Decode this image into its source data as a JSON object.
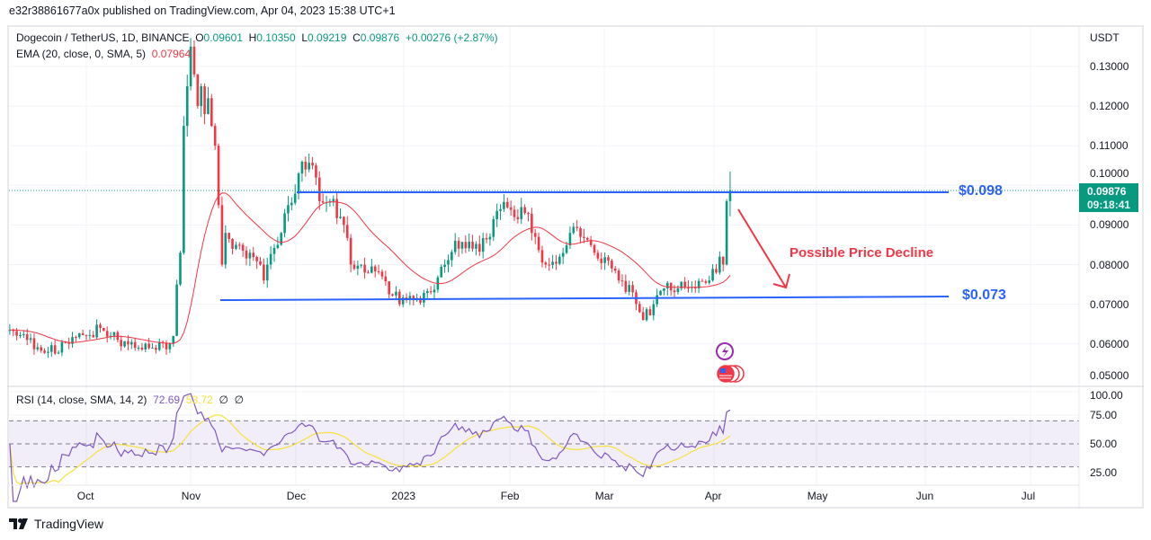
{
  "publisher_line": "e32r38861677a0x published on TradingView.com, Apr 04, 2023 15:38 UTC+1",
  "legend": {
    "symbol": "Dogecoin / TetherUS, 1D, BINANCE",
    "o_label": "O",
    "o": "0.09601",
    "h_label": "H",
    "h": "0.10350",
    "l_label": "L",
    "l": "0.09219",
    "c_label": "C",
    "c": "0.09876",
    "change": "+0.00276 (+2.87%)",
    "ema_label": "EMA (20, close, 0, SMA, 5)",
    "ema_value": "0.07964"
  },
  "rsi_legend": {
    "label": "RSI (14, close, SMA, 14, 2)",
    "rsi_value": "72.69",
    "sma_value": "53.72",
    "extra1": "∅",
    "extra2": "∅"
  },
  "price_axis": {
    "currency": "USDT",
    "ticks": [
      "0.13000",
      "0.12000",
      "0.11000",
      "0.10000",
      "0.09000",
      "0.08000",
      "0.07000",
      "0.06000",
      "0.05000"
    ]
  },
  "rsi_axis": {
    "ticks": [
      "100.00",
      "75.00",
      "50.00",
      "25.00"
    ]
  },
  "time_axis": {
    "ticks": [
      "Oct",
      "Nov",
      "Dec",
      "2023",
      "Feb",
      "Mar",
      "Apr",
      "May",
      "Jun",
      "Jul"
    ]
  },
  "last_price": {
    "value": "0.09876",
    "countdown": "09:18:41"
  },
  "annotations": {
    "resistance_label": "$0.098",
    "support_label": "$0.073",
    "note": "Possible Price Decline"
  },
  "footer": {
    "brand": "TradingView"
  },
  "colors": {
    "up": "#089981",
    "down": "#f23645",
    "ema": "#f23645",
    "rsi": "#7e57c2",
    "rsi_sma": "#f7e13a",
    "levels": "#2962ff",
    "note": "#f23645"
  },
  "chart_data": {
    "type": "candlestick",
    "title": "Dogecoin / TetherUS, 1D, BINANCE",
    "ylabel": "USDT",
    "ylim": [
      0.05,
      0.135
    ],
    "resistance": 0.098,
    "support": 0.073,
    "last_candle": {
      "date": "2023-04-04",
      "open": 0.09601,
      "high": 0.1035,
      "low": 0.09219,
      "close": 0.09876
    },
    "close_keypoints": [
      [
        "2022-09-09",
        0.0635
      ],
      [
        "2022-09-14",
        0.061
      ],
      [
        "2022-09-20",
        0.058
      ],
      [
        "2022-09-26",
        0.06
      ],
      [
        "2022-10-01",
        0.062
      ],
      [
        "2022-10-05",
        0.064
      ],
      [
        "2022-10-10",
        0.061
      ],
      [
        "2022-10-15",
        0.059
      ],
      [
        "2022-10-20",
        0.059
      ],
      [
        "2022-10-25",
        0.06
      ],
      [
        "2022-10-26",
        0.062
      ],
      [
        "2022-10-27",
        0.075
      ],
      [
        "2022-10-28",
        0.083
      ],
      [
        "2022-10-29",
        0.115
      ],
      [
        "2022-10-30",
        0.125
      ],
      [
        "2022-10-31",
        0.135
      ],
      [
        "2022-11-01",
        0.128
      ],
      [
        "2022-11-02",
        0.12
      ],
      [
        "2022-11-03",
        0.125
      ],
      [
        "2022-11-04",
        0.118
      ],
      [
        "2022-11-05",
        0.122
      ],
      [
        "2022-11-06",
        0.115
      ],
      [
        "2022-11-07",
        0.11
      ],
      [
        "2022-11-08",
        0.095
      ],
      [
        "2022-11-09",
        0.08
      ],
      [
        "2022-11-10",
        0.088
      ],
      [
        "2022-11-13",
        0.085
      ],
      [
        "2022-11-17",
        0.083
      ],
      [
        "2022-11-20",
        0.08
      ],
      [
        "2022-11-21",
        0.076
      ],
      [
        "2022-11-22",
        0.08
      ],
      [
        "2022-11-25",
        0.085
      ],
      [
        "2022-11-28",
        0.095
      ],
      [
        "2022-12-01",
        0.103
      ],
      [
        "2022-12-03",
        0.104
      ],
      [
        "2022-12-05",
        0.105
      ],
      [
        "2022-12-07",
        0.096
      ],
      [
        "2022-12-10",
        0.096
      ],
      [
        "2022-12-14",
        0.09
      ],
      [
        "2022-12-16",
        0.08
      ],
      [
        "2022-12-20",
        0.078
      ],
      [
        "2022-12-25",
        0.077
      ],
      [
        "2022-12-30",
        0.07
      ],
      [
        "2023-01-03",
        0.071
      ],
      [
        "2023-01-08",
        0.073
      ],
      [
        "2023-01-12",
        0.08
      ],
      [
        "2023-01-15",
        0.086
      ],
      [
        "2023-01-20",
        0.084
      ],
      [
        "2023-01-25",
        0.087
      ],
      [
        "2023-01-28",
        0.094
      ],
      [
        "2023-02-01",
        0.092
      ],
      [
        "2023-02-04",
        0.093
      ],
      [
        "2023-02-07",
        0.087
      ],
      [
        "2023-02-10",
        0.08
      ],
      [
        "2023-02-14",
        0.082
      ],
      [
        "2023-02-17",
        0.088
      ],
      [
        "2023-02-20",
        0.087
      ],
      [
        "2023-02-24",
        0.083
      ],
      [
        "2023-02-28",
        0.081
      ],
      [
        "2023-03-03",
        0.076
      ],
      [
        "2023-03-07",
        0.073
      ],
      [
        "2023-03-09",
        0.068
      ],
      [
        "2023-03-10",
        0.066
      ],
      [
        "2023-03-13",
        0.07
      ],
      [
        "2023-03-16",
        0.074
      ],
      [
        "2023-03-20",
        0.074
      ],
      [
        "2023-03-25",
        0.074
      ],
      [
        "2023-03-29",
        0.076
      ],
      [
        "2023-03-31",
        0.078
      ],
      [
        "2023-04-01",
        0.082
      ],
      [
        "2023-04-02",
        0.08
      ],
      [
        "2023-04-03",
        0.096
      ],
      [
        "2023-04-04",
        0.09876
      ]
    ],
    "indicators": [
      "EMA (20, close, 0, SMA, 5)",
      "RSI (14, close, SMA, 14, 2)"
    ],
    "rsi_bands": [
      30,
      50,
      70
    ],
    "grid": true
  }
}
